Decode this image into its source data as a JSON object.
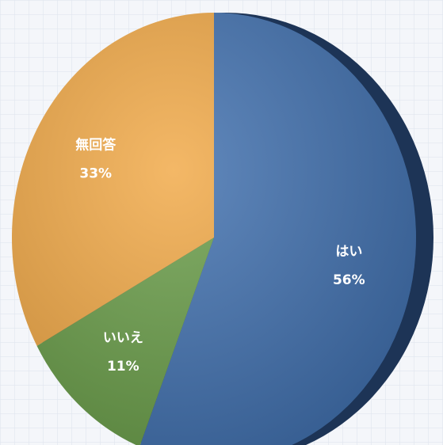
{
  "chart_data": {
    "type": "pie",
    "categories": [
      "はい",
      "いいえ",
      "無回答"
    ],
    "values": [
      56,
      11,
      33
    ],
    "value_labels": [
      "56%",
      "11%",
      "33%"
    ],
    "colors": [
      "#3f6fae",
      "#699d48",
      "#f1a845"
    ]
  }
}
